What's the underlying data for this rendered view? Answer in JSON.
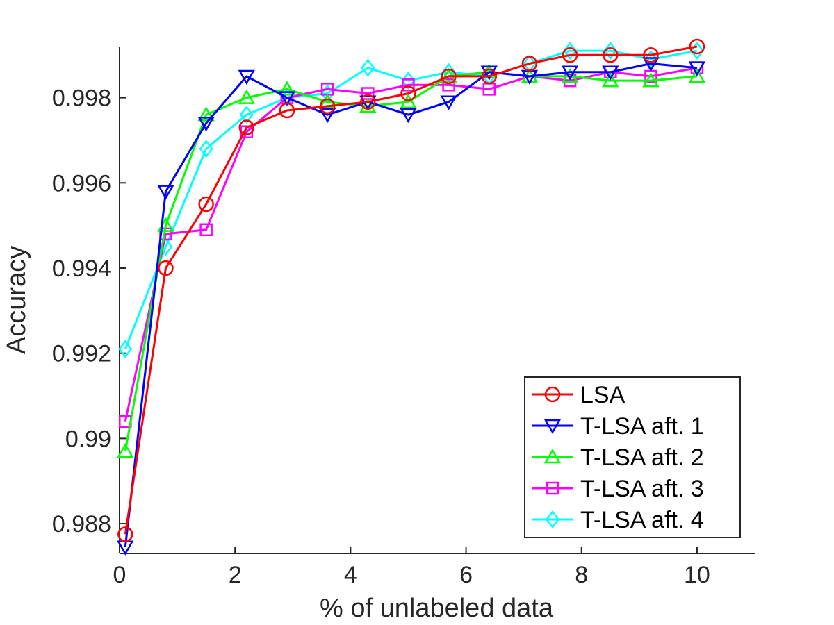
{
  "chart_data": {
    "type": "line",
    "title": "",
    "xlabel": "% of unlabeled data",
    "ylabel": "Accuracy",
    "xlim": [
      0,
      11
    ],
    "ylim": [
      0.9873,
      0.9992
    ],
    "xticks": [
      0,
      2,
      4,
      6,
      8,
      10
    ],
    "xtick_labels": [
      "0",
      "2",
      "4",
      "6",
      "8",
      "10"
    ],
    "yticks": [
      0.988,
      0.99,
      0.992,
      0.994,
      0.996,
      0.998
    ],
    "ytick_labels": [
      "0.988",
      "0.99",
      "0.992",
      "0.994",
      "0.996",
      "0.998"
    ],
    "grid": false,
    "legend_position": "bottom-right",
    "x": [
      0.1,
      0.8,
      1.5,
      2.2,
      2.9,
      3.6,
      4.3,
      5.0,
      5.7,
      6.4,
      7.1,
      7.8,
      8.5,
      9.2,
      10.0
    ],
    "series": [
      {
        "name": "LSA",
        "color": "#ff0000",
        "marker": "circle",
        "values": [
          0.98775,
          0.994,
          0.9955,
          0.9973,
          0.9977,
          0.9978,
          0.9979,
          0.9981,
          0.9985,
          0.9985,
          0.9988,
          0.999,
          0.999,
          0.999,
          0.9992
        ]
      },
      {
        "name": "T-LSA aft. 1",
        "color": "#0000ff",
        "marker": "triangle-down",
        "values": [
          0.98745,
          0.9958,
          0.9974,
          0.9985,
          0.998,
          0.9976,
          0.9979,
          0.9976,
          0.9979,
          0.9986,
          0.9985,
          0.9986,
          0.9986,
          0.9988,
          0.9987
        ]
      },
      {
        "name": "T-LSA aft. 2",
        "color": "#00ff00",
        "marker": "triangle-up",
        "values": [
          0.9897,
          0.995,
          0.9976,
          0.998,
          0.9982,
          0.9979,
          0.9978,
          0.9979,
          0.9985,
          0.9986,
          0.9985,
          0.9985,
          0.9984,
          0.9984,
          0.9985
        ]
      },
      {
        "name": "T-LSA aft. 3",
        "color": "#ff00ff",
        "marker": "square",
        "values": [
          0.9904,
          0.9948,
          0.9949,
          0.9972,
          0.998,
          0.9982,
          0.9981,
          0.9983,
          0.9983,
          0.9982,
          0.9985,
          0.9984,
          0.9986,
          0.9985,
          0.9987
        ]
      },
      {
        "name": "T-LSA aft. 4",
        "color": "#00ffff",
        "marker": "diamond",
        "values": [
          0.9921,
          0.9945,
          0.9968,
          0.9976,
          0.998,
          0.9981,
          0.9987,
          0.9984,
          0.9986,
          0.9985,
          0.9988,
          0.9991,
          0.9991,
          0.9989,
          0.9991
        ]
      }
    ]
  }
}
